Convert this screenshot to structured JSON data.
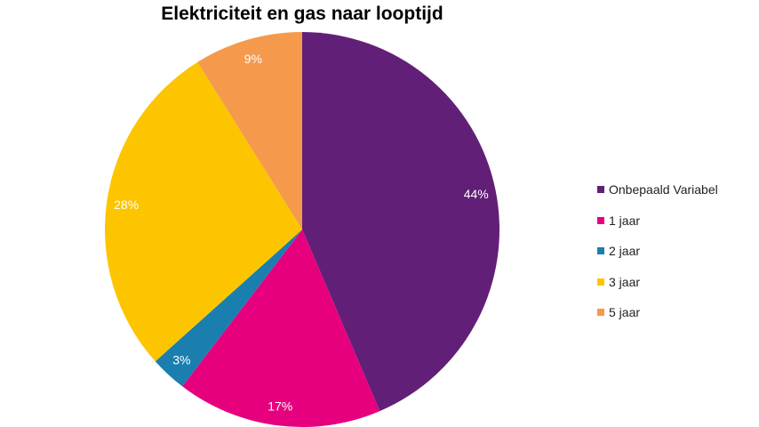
{
  "chart_data": {
    "type": "pie",
    "title": "Elektriciteit en gas naar looptijd",
    "categories": [
      "Onbepaald Variabel",
      "1 jaar",
      "2 jaar",
      "3 jaar",
      "5 jaar"
    ],
    "values": [
      44,
      17,
      3,
      28,
      9
    ],
    "labels": [
      "44%",
      "17%",
      "3%",
      "28%",
      "9%"
    ],
    "colors": [
      "#621F77",
      "#E6007E",
      "#1A7FAE",
      "#FDC500",
      "#F59A4C"
    ],
    "legend_position": "right"
  }
}
